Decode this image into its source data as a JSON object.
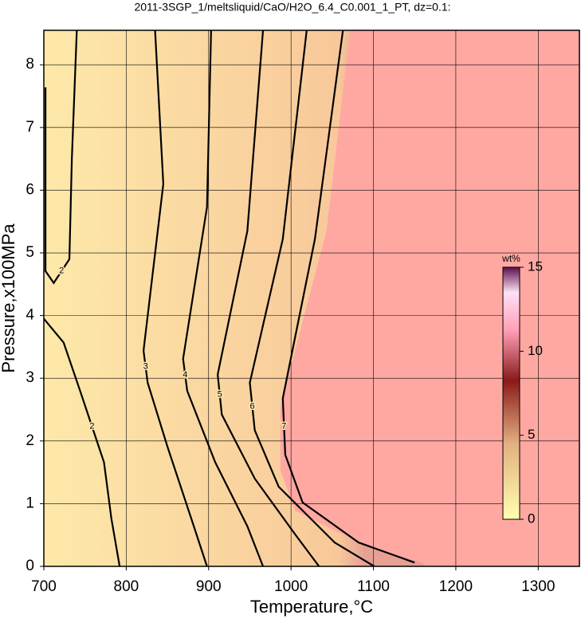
{
  "chart_data": {
    "type": "contour",
    "title": "2011-3SGP_1/meltsliquid/CaO/H2O_6.4_C0.001_1_PT, dz=0.1:",
    "x_label": "Temperature,°C",
    "y_label": "Pressure,x100MPa",
    "xlim": [
      700,
      1350
    ],
    "ylim": [
      0,
      8.55
    ],
    "xticks": [
      700,
      800,
      900,
      1000,
      1100,
      1200,
      1300
    ],
    "yticks": [
      0,
      1,
      2,
      3,
      4,
      5,
      6,
      7,
      8
    ],
    "grid": true,
    "region": {
      "color": "#ffa8a2",
      "x": [
        1072,
        1043,
        987,
        987,
        1005,
        1053,
        1111,
        1159,
        1164
      ],
      "y": [
        8.55,
        5.35,
        2.55,
        1.53,
        0.89,
        0.57,
        0.25,
        0.06,
        0
      ]
    },
    "contours": [
      {
        "level": 2,
        "x": [
          740,
          734,
          731,
          712,
          702,
          702
        ],
        "y": [
          8.55,
          6.5,
          4.9,
          4.52,
          4.71,
          7.64
        ]
      },
      {
        "level": 2,
        "x": [
          700,
          724,
          744,
          773,
          782,
          792
        ],
        "y": [
          3.95,
          3.57,
          2.8,
          1.66,
          0.76,
          0
        ]
      },
      {
        "level": 3,
        "x": [
          835,
          845,
          821,
          826,
          850,
          879,
          898
        ],
        "y": [
          8.55,
          6.1,
          3.44,
          2.93,
          1.91,
          0.76,
          0
        ]
      },
      {
        "level": 4,
        "x": [
          903,
          898,
          869,
          874,
          908,
          947,
          966
        ],
        "y": [
          8.55,
          5.73,
          3.31,
          2.8,
          1.66,
          0.64,
          0
        ]
      },
      {
        "level": 5,
        "x": [
          966,
          947,
          911,
          916,
          956,
          1005,
          1034
        ],
        "y": [
          8.55,
          5.35,
          3.06,
          2.42,
          1.4,
          0.51,
          0
        ]
      },
      {
        "level": 6,
        "x": [
          1019,
          990,
          950,
          956,
          985,
          1053,
          1101
        ],
        "y": [
          8.55,
          5.22,
          2.93,
          2.17,
          1.27,
          0.38,
          0
        ]
      },
      {
        "level": 7,
        "x": [
          1063,
          1029,
          990,
          993,
          1014,
          1082,
          1150
        ],
        "y": [
          8.55,
          5.22,
          2.68,
          1.78,
          1.02,
          0.38,
          0.06
        ]
      }
    ],
    "colorbar": {
      "label": "wt%",
      "lim": [
        0,
        15
      ],
      "ticks": [
        0,
        5,
        10,
        15
      ]
    }
  }
}
